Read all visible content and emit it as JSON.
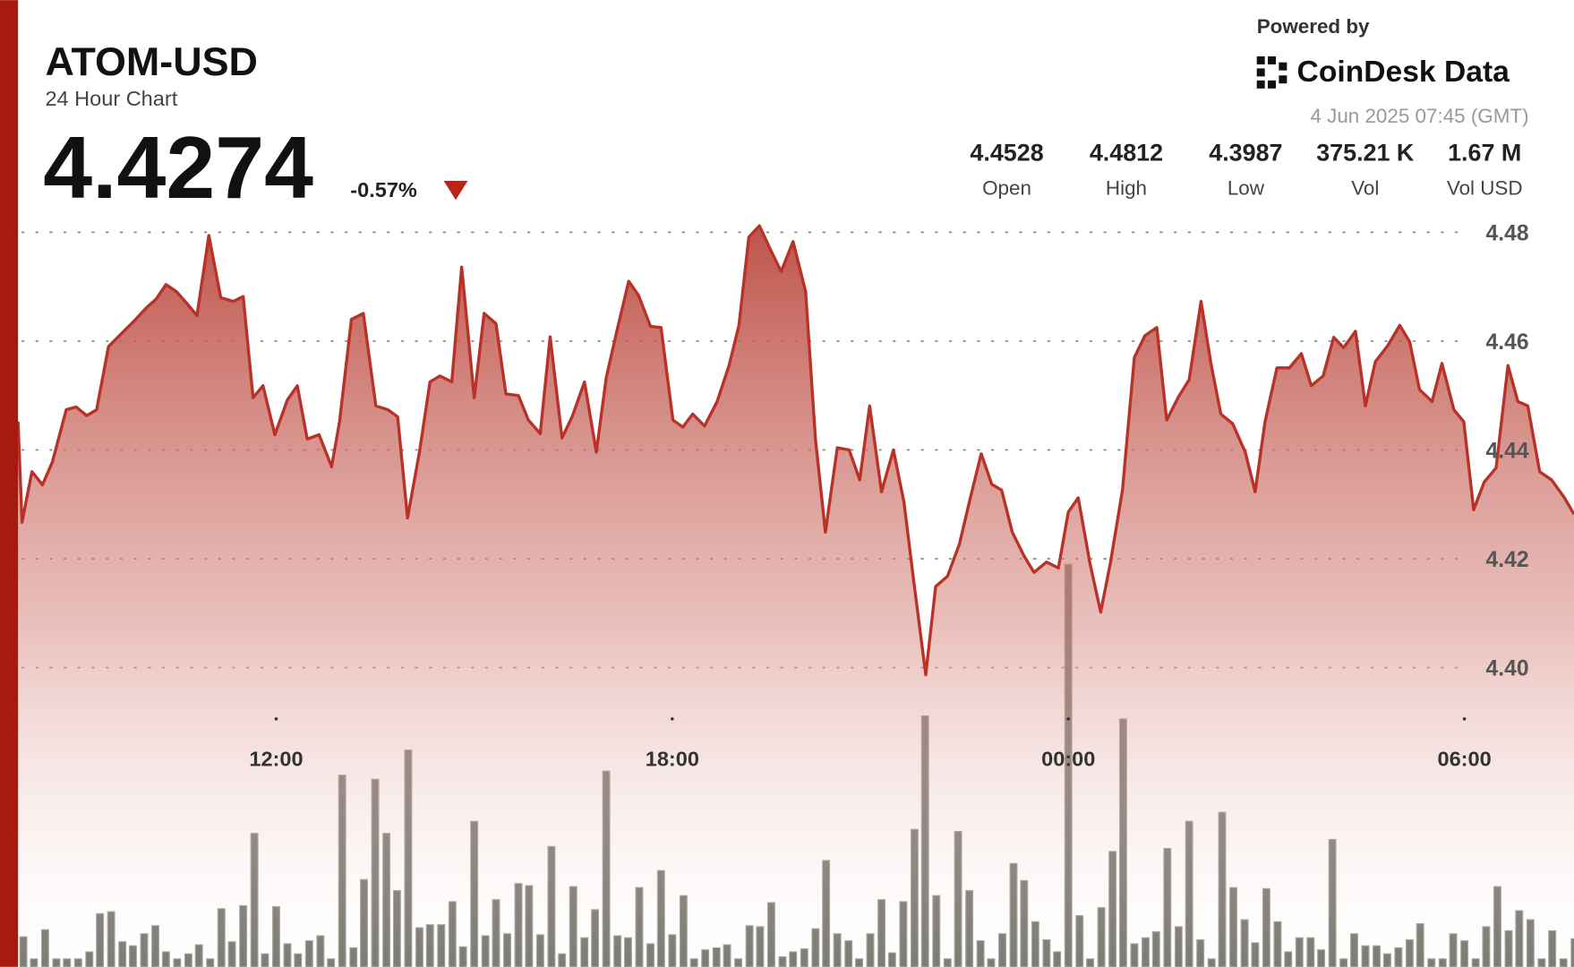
{
  "header": {
    "symbol": "ATOM-USD",
    "subtitle": "24 Hour Chart",
    "price": "4.4274",
    "change": "-0.57%",
    "powered_by": "Powered by",
    "brand": "CoinDesk Data",
    "timestamp": "4 Jun 2025 07:45 (GMT)"
  },
  "stats": [
    {
      "value": "4.4528",
      "label": "Open"
    },
    {
      "value": "4.4812",
      "label": "High"
    },
    {
      "value": "4.3987",
      "label": "Low"
    },
    {
      "value": "375.21 K",
      "label": "Vol"
    },
    {
      "value": "1.67 M",
      "label": "Vol USD"
    }
  ],
  "chart_data": [
    {
      "type": "area",
      "color": "#b83228",
      "x": [
        8.09,
        8.15,
        8.3,
        8.46,
        8.61,
        8.82,
        8.97,
        9.13,
        9.28,
        9.46,
        9.64,
        9.84,
        10.04,
        10.18,
        10.33,
        10.49,
        10.65,
        10.8,
        10.98,
        11.16,
        11.35,
        11.5,
        11.65,
        11.8,
        11.98,
        12.17,
        12.32,
        12.47,
        12.65,
        12.84,
        12.96,
        13.14,
        13.32,
        13.51,
        13.69,
        13.84,
        13.99,
        14.17,
        14.33,
        14.48,
        14.66,
        14.81,
        15.0,
        15.15,
        15.33,
        15.48,
        15.67,
        15.82,
        16.0,
        16.15,
        16.33,
        16.49,
        16.67,
        16.85,
        17.0,
        17.16,
        17.34,
        17.49,
        17.67,
        17.83,
        18.01,
        18.16,
        18.31,
        18.49,
        18.68,
        18.86,
        19.01,
        19.16,
        19.32,
        19.5,
        19.65,
        19.83,
        20.02,
        20.17,
        20.32,
        20.5,
        20.68,
        20.84,
        20.99,
        21.17,
        21.35,
        21.51,
        21.66,
        21.84,
        21.99,
        22.17,
        22.35,
        22.5,
        22.68,
        22.84,
        22.99,
        23.15,
        23.33,
        23.48,
        23.67,
        23.85,
        24.0,
        24.15,
        24.33,
        24.49,
        24.64,
        24.82,
        25.0,
        25.16,
        25.34,
        25.49,
        25.67,
        25.83,
        26.01,
        26.16,
        26.31,
        26.49,
        26.68,
        26.83,
        26.98,
        27.16,
        27.35,
        27.53,
        27.68,
        27.86,
        28.02,
        28.17,
        28.35,
        28.5,
        28.65,
        28.84,
        29.02,
        29.17,
        29.32,
        29.51,
        29.66,
        29.84,
        29.99,
        30.14,
        30.3,
        30.48,
        30.66,
        30.81,
        30.96,
        31.14,
        31.32,
        31.51,
        31.66
      ],
      "values": [
        4.4452,
        4.4267,
        4.436,
        4.4336,
        4.4378,
        4.4474,
        4.4479,
        4.4463,
        4.4474,
        4.459,
        4.4612,
        4.4636,
        4.4662,
        4.4677,
        4.4704,
        4.4691,
        4.4669,
        4.4647,
        4.4794,
        4.468,
        4.4673,
        4.4682,
        4.4496,
        4.4518,
        4.4428,
        4.4492,
        4.4518,
        4.442,
        4.4428,
        4.4369,
        4.4452,
        4.464,
        4.4651,
        4.4481,
        4.4474,
        4.4461,
        4.4275,
        4.4396,
        4.4525,
        4.4536,
        4.4525,
        4.4736,
        4.4496,
        4.4651,
        4.4632,
        4.4503,
        4.45,
        4.4455,
        4.443,
        4.4608,
        4.4422,
        4.4463,
        4.4525,
        4.4396,
        4.4533,
        4.4618,
        4.471,
        4.4684,
        4.4627,
        4.4625,
        4.4455,
        4.4442,
        4.4466,
        4.4444,
        4.4489,
        4.4555,
        4.4629,
        4.4791,
        4.4812,
        4.4765,
        4.4728,
        4.4783,
        4.4691,
        4.4419,
        4.4249,
        4.4404,
        4.44,
        4.4345,
        4.4481,
        4.4323,
        4.44,
        4.4304,
        4.4157,
        4.3987,
        4.4149,
        4.4168,
        4.4227,
        4.4304,
        4.4393,
        4.4337,
        4.4326,
        4.4249,
        4.4205,
        4.4175,
        4.4194,
        4.4183,
        4.4286,
        4.4312,
        4.419,
        4.4102,
        4.4194,
        4.4326,
        4.457,
        4.461,
        4.4625,
        4.4455,
        4.4498,
        4.4529,
        4.4673,
        4.4559,
        4.4466,
        4.4448,
        4.4396,
        4.4323,
        4.4452,
        4.4551,
        4.4551,
        4.4577,
        4.4518,
        4.4536,
        4.4607,
        4.4588,
        4.4618,
        4.4481,
        4.4562,
        4.4592,
        4.4629,
        4.4599,
        4.4511,
        4.4489,
        4.4559,
        4.4474,
        4.4452,
        4.429,
        4.4341,
        4.4367,
        4.4555,
        4.4489,
        4.4481,
        4.436,
        4.4345,
        4.4313,
        4.4282
      ],
      "xlim": [
        8.09,
        31.66
      ],
      "xticks": [
        {
          "value": 12,
          "label": "12:00"
        },
        {
          "value": 18,
          "label": "18:00"
        },
        {
          "value": 24,
          "label": "00:00"
        },
        {
          "value": 30,
          "label": "06:00"
        }
      ],
      "ylim": [
        4.345,
        4.483
      ],
      "yticks": [
        4.48,
        4.46,
        4.44,
        4.42,
        {
          "value": 4.4,
          "label": "4.40"
        }
      ],
      "grid": true
    },
    {
      "type": "bar",
      "color": "#6e6d65",
      "x": [
        8.17,
        8.33,
        8.5,
        8.67,
        8.83,
        9,
        9.17,
        9.33,
        9.5,
        9.67,
        9.83,
        10,
        10.17,
        10.33,
        10.5,
        10.67,
        10.83,
        11,
        11.17,
        11.33,
        11.5,
        11.67,
        11.83,
        12,
        12.17,
        12.33,
        12.5,
        12.67,
        12.83,
        13,
        13.17,
        13.33,
        13.5,
        13.67,
        13.83,
        14,
        14.17,
        14.33,
        14.5,
        14.67,
        14.83,
        15,
        15.17,
        15.33,
        15.5,
        15.67,
        15.83,
        16,
        16.17,
        16.33,
        16.5,
        16.67,
        16.83,
        17,
        17.17,
        17.33,
        17.5,
        17.67,
        17.83,
        18,
        18.17,
        18.33,
        18.5,
        18.67,
        18.83,
        19,
        19.17,
        19.33,
        19.5,
        19.67,
        19.83,
        20,
        20.17,
        20.33,
        20.5,
        20.67,
        20.83,
        21,
        21.17,
        21.33,
        21.5,
        21.67,
        21.83,
        22,
        22.17,
        22.33,
        22.5,
        22.67,
        22.83,
        23,
        23.17,
        23.33,
        23.5,
        23.67,
        23.83,
        24,
        24.17,
        24.33,
        24.5,
        24.67,
        24.83,
        25,
        25.17,
        25.33,
        25.5,
        25.67,
        25.83,
        26,
        26.17,
        26.33,
        26.5,
        26.67,
        26.83,
        27,
        27.17,
        27.33,
        27.5,
        27.67,
        27.83,
        28,
        28.17,
        28.33,
        28.5,
        28.67,
        28.83,
        29,
        29.17,
        29.33,
        29.5,
        29.67,
        29.83,
        30,
        30.17,
        30.33,
        30.5,
        30.67,
        30.83,
        31,
        31.17,
        31.33,
        31.5,
        31.67
      ],
      "values": [
        30,
        8,
        37,
        8,
        8,
        8,
        15,
        53,
        55,
        25,
        21,
        33,
        41,
        15,
        8,
        13,
        22,
        8,
        58,
        25,
        61,
        133,
        13,
        60,
        23,
        13,
        26,
        31,
        8,
        191,
        19,
        87,
        187,
        133,
        76,
        216,
        39,
        42,
        42,
        65,
        20,
        145,
        31,
        67,
        33,
        83,
        81,
        32,
        120,
        13,
        80,
        29,
        57,
        195,
        31,
        29,
        79,
        23,
        96,
        32,
        71,
        8,
        17,
        19,
        22,
        8,
        41,
        40,
        64,
        10,
        15,
        18,
        38,
        106,
        33,
        26,
        8,
        33,
        67,
        14,
        65,
        137,
        250,
        71,
        8,
        135,
        76,
        26,
        8,
        33,
        103,
        86,
        45,
        27,
        15,
        401,
        51,
        8,
        59,
        115,
        247,
        23,
        29,
        35,
        118,
        40,
        145,
        27,
        8,
        154,
        79,
        47,
        24,
        78,
        45,
        15,
        29,
        29,
        17,
        127,
        8,
        33,
        21,
        21,
        13,
        19,
        27,
        43,
        8,
        8,
        33,
        26,
        8,
        40,
        80,
        36,
        56,
        47,
        8,
        36,
        8,
        28
      ],
      "xlim": [
        8.09,
        31.66
      ],
      "ylim": [
        0,
        748
      ]
    }
  ]
}
